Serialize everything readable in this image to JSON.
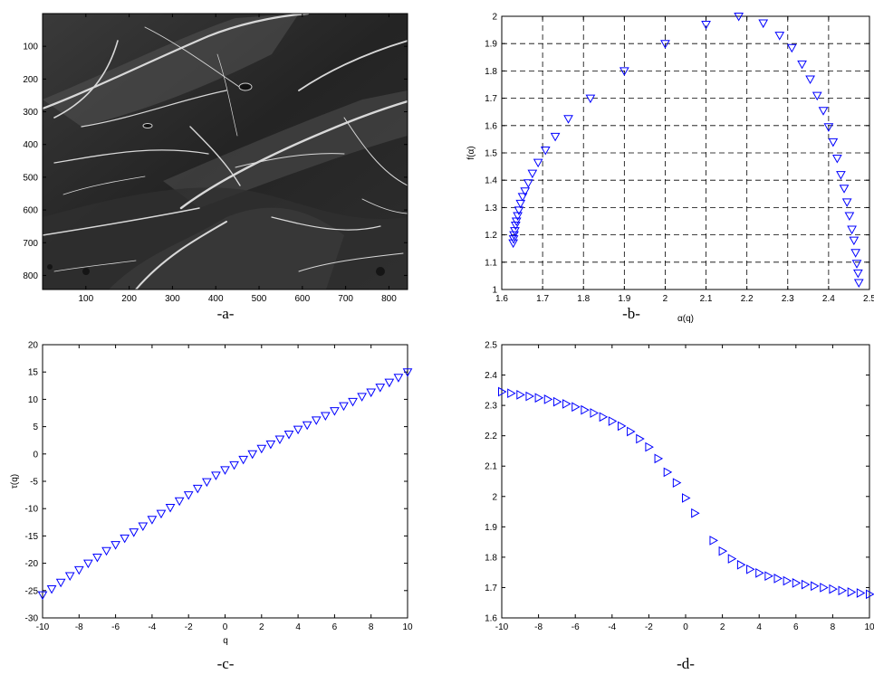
{
  "colors": {
    "marker": "#0000ff",
    "axes": "#000000",
    "grid": "#000000",
    "background": "#ffffff"
  },
  "panels": {
    "a": {
      "label": "-a-"
    },
    "b": {
      "label": "-b-"
    },
    "c": {
      "label": "-c-"
    },
    "d": {
      "label": "-d-"
    }
  },
  "chart_data": [
    {
      "panel": "a",
      "type": "image",
      "content": "grayscale SEM micrograph of a fracture surface",
      "xticks": [
        100,
        200,
        300,
        400,
        500,
        600,
        700,
        800
      ],
      "yticks": [
        100,
        200,
        300,
        400,
        500,
        600,
        700,
        800
      ],
      "xlim": [
        0,
        843
      ],
      "ylim": [
        0,
        843
      ],
      "y_reversed": true
    },
    {
      "panel": "b",
      "type": "scatter",
      "marker": "triangle-down",
      "xlabel": "α(q)",
      "ylabel": "f(α)",
      "xlim": [
        1.6,
        2.5
      ],
      "ylim": [
        1.0,
        2.0
      ],
      "xticks": [
        1.6,
        1.7,
        1.8,
        1.9,
        2,
        2.1,
        2.2,
        2.3,
        2.4,
        2.5
      ],
      "yticks": [
        1,
        1.1,
        1.2,
        1.3,
        1.4,
        1.5,
        1.6,
        1.7,
        1.8,
        1.9,
        2
      ],
      "grid": true,
      "x": [
        1.628,
        1.629,
        1.63,
        1.632,
        1.634,
        1.636,
        1.639,
        1.642,
        1.646,
        1.651,
        1.657,
        1.665,
        1.675,
        1.689,
        1.707,
        1.731,
        1.763,
        1.817,
        1.9,
        2.0,
        2.1,
        2.18,
        2.24,
        2.28,
        2.31,
        2.335,
        2.355,
        2.372,
        2.387,
        2.4,
        2.411,
        2.421,
        2.43,
        2.438,
        2.445,
        2.451,
        2.457,
        2.462,
        2.466,
        2.469,
        2.472,
        2.474
      ],
      "y": [
        1.17,
        1.185,
        1.2,
        1.215,
        1.235,
        1.25,
        1.27,
        1.29,
        1.315,
        1.34,
        1.36,
        1.39,
        1.425,
        1.465,
        1.51,
        1.56,
        1.625,
        1.7,
        1.8,
        1.9,
        1.97,
        2.0,
        1.975,
        1.93,
        1.885,
        1.825,
        1.77,
        1.71,
        1.655,
        1.595,
        1.54,
        1.48,
        1.42,
        1.37,
        1.32,
        1.27,
        1.22,
        1.18,
        1.135,
        1.095,
        1.06,
        1.025
      ]
    },
    {
      "panel": "c",
      "type": "scatter",
      "marker": "triangle-down",
      "xlabel": "q",
      "ylabel": "τ(q)",
      "xlim": [
        -10,
        10
      ],
      "ylim": [
        -30,
        20
      ],
      "xticks": [
        -10,
        -8,
        -6,
        -4,
        -2,
        0,
        2,
        4,
        6,
        8,
        10
      ],
      "yticks": [
        -30,
        -25,
        -20,
        -15,
        -10,
        -5,
        0,
        5,
        10,
        15,
        20
      ],
      "grid": false,
      "x": [
        -10,
        -9.5,
        -9,
        -8.5,
        -8,
        -7.5,
        -7,
        -6.5,
        -6,
        -5.5,
        -5,
        -4.5,
        -4,
        -3.5,
        -3,
        -2.5,
        -2,
        -1.5,
        -1,
        -0.5,
        0,
        0.5,
        1,
        1.5,
        2,
        2.5,
        3,
        3.5,
        4,
        4.5,
        5,
        5.5,
        6,
        6.5,
        7,
        7.5,
        8,
        8.5,
        9,
        9.5,
        10
      ],
      "y": [
        -25.8,
        -24.7,
        -23.5,
        -22.3,
        -21.2,
        -20.0,
        -18.9,
        -17.7,
        -16.6,
        -15.4,
        -14.3,
        -13.2,
        -12.0,
        -10.9,
        -9.8,
        -8.6,
        -7.5,
        -6.3,
        -5.1,
        -3.9,
        -2.9,
        -2.0,
        -1.0,
        0.0,
        1.0,
        1.8,
        2.7,
        3.6,
        4.5,
        5.3,
        6.2,
        7.0,
        7.9,
        8.8,
        9.6,
        10.5,
        11.3,
        12.2,
        13.1,
        14.0,
        15.0
      ]
    },
    {
      "panel": "d",
      "type": "scatter",
      "marker": "triangle-right",
      "xlabel": "",
      "ylabel": "",
      "xlim": [
        -10,
        10
      ],
      "ylim": [
        1.6,
        2.5
      ],
      "xticks": [
        -10,
        -8,
        -6,
        -4,
        -2,
        0,
        2,
        4,
        6,
        8,
        10
      ],
      "yticks": [
        1.6,
        1.7,
        1.8,
        1.9,
        2,
        2.1,
        2.2,
        2.3,
        2.4,
        2.5
      ],
      "grid": false,
      "x": [
        -10,
        -9.5,
        -9,
        -8.5,
        -8,
        -7.5,
        -7,
        -6.5,
        -6,
        -5.5,
        -5,
        -4.5,
        -4,
        -3.5,
        -3,
        -2.5,
        -2,
        -1.5,
        -1,
        -0.5,
        0,
        0.5,
        1.5,
        2,
        2.5,
        3,
        3.5,
        4,
        4.5,
        5,
        5.5,
        6,
        6.5,
        7,
        7.5,
        8,
        8.5,
        9,
        9.5,
        10
      ],
      "y": [
        2.345,
        2.34,
        2.335,
        2.33,
        2.325,
        2.32,
        2.312,
        2.305,
        2.295,
        2.285,
        2.275,
        2.262,
        2.248,
        2.232,
        2.214,
        2.19,
        2.163,
        2.125,
        2.08,
        2.045,
        1.995,
        1.945,
        1.855,
        1.82,
        1.795,
        1.775,
        1.76,
        1.748,
        1.738,
        1.73,
        1.722,
        1.715,
        1.71,
        1.705,
        1.7,
        1.695,
        1.69,
        1.685,
        1.682,
        1.678
      ]
    }
  ]
}
